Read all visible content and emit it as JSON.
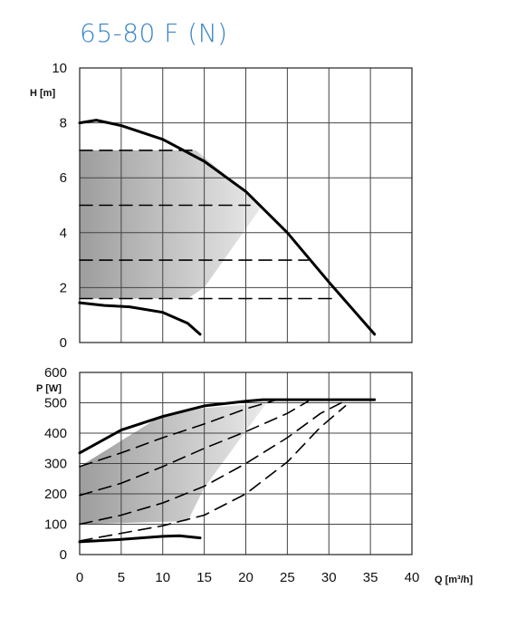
{
  "title": "65-80 F (N)",
  "colors": {
    "title": "#3a86c8",
    "curve": "#000000",
    "grid": "#333333",
    "shade": "#9a9a9a"
  },
  "chart_data": [
    {
      "type": "line",
      "ylabel": "H [m]",
      "xlim": [
        0,
        40
      ],
      "ylim": [
        0,
        10
      ],
      "x_ticks": [
        0,
        5,
        10,
        15,
        20,
        25,
        30,
        35,
        40
      ],
      "y_ticks": [
        0,
        2,
        4,
        6,
        8,
        10
      ],
      "grid": true,
      "shaded_region": [
        [
          0,
          7
        ],
        [
          14,
          7
        ],
        [
          22,
          5
        ],
        [
          15,
          2
        ],
        [
          13,
          1.6
        ],
        [
          0,
          1.6
        ]
      ],
      "series": [
        {
          "style": "solid",
          "points": [
            [
              0,
              8.0
            ],
            [
              2,
              8.1
            ],
            [
              5,
              7.9
            ],
            [
              10,
              7.4
            ],
            [
              15,
              6.6
            ],
            [
              20,
              5.5
            ],
            [
              25,
              4.0
            ],
            [
              30,
              2.2
            ],
            [
              35.5,
              0.3
            ]
          ]
        },
        {
          "style": "solid",
          "points": [
            [
              0,
              1.45
            ],
            [
              3,
              1.35
            ],
            [
              6,
              1.3
            ],
            [
              10,
              1.1
            ],
            [
              13,
              0.7
            ],
            [
              14.5,
              0.3
            ]
          ]
        },
        {
          "style": "dashed",
          "points": [
            [
              0,
              7
            ],
            [
              14,
              7
            ]
          ]
        },
        {
          "style": "dashed",
          "points": [
            [
              0,
              5
            ],
            [
              20.5,
              5
            ]
          ]
        },
        {
          "style": "dashed",
          "points": [
            [
              0,
              3
            ],
            [
              27.5,
              3
            ]
          ]
        },
        {
          "style": "dashed",
          "points": [
            [
              0,
              1.6
            ],
            [
              31,
              1.6
            ]
          ]
        }
      ]
    },
    {
      "type": "line",
      "ylabel": "P [W]",
      "xlabel": "Q [m³/h]",
      "xlim": [
        0,
        40
      ],
      "ylim": [
        0,
        600
      ],
      "x_ticks": [
        0,
        5,
        10,
        15,
        20,
        25,
        30,
        35,
        40
      ],
      "y_ticks": [
        0,
        100,
        200,
        300,
        400,
        500,
        600
      ],
      "grid": true,
      "shaded_region": [
        [
          0,
          290
        ],
        [
          10,
          460
        ],
        [
          14,
          480
        ],
        [
          22.5,
          500
        ],
        [
          15,
          220
        ],
        [
          13,
          110
        ],
        [
          0,
          100
        ]
      ],
      "series": [
        {
          "style": "solid",
          "points": [
            [
              0,
              335
            ],
            [
              5,
              410
            ],
            [
              10,
              455
            ],
            [
              15,
              490
            ],
            [
              20,
              505
            ],
            [
              22,
              510
            ],
            [
              35.5,
              510
            ]
          ]
        },
        {
          "style": "solid",
          "points": [
            [
              0,
              42
            ],
            [
              5,
              50
            ],
            [
              10,
              60
            ],
            [
              12,
              62
            ],
            [
              14.5,
              55
            ]
          ]
        },
        {
          "style": "dashed",
          "points": [
            [
              0,
              290
            ],
            [
              5,
              335
            ],
            [
              10,
              385
            ],
            [
              15,
              430
            ],
            [
              20,
              480
            ],
            [
              23.5,
              508
            ]
          ]
        },
        {
          "style": "dashed",
          "points": [
            [
              0,
              195
            ],
            [
              5,
              235
            ],
            [
              10,
              290
            ],
            [
              15,
              350
            ],
            [
              20,
              405
            ],
            [
              25,
              465
            ],
            [
              27.5,
              505
            ]
          ]
        },
        {
          "style": "dashed",
          "points": [
            [
              0,
              100
            ],
            [
              5,
              130
            ],
            [
              10,
              170
            ],
            [
              15,
              225
            ],
            [
              20,
              300
            ],
            [
              25,
              385
            ],
            [
              29,
              465
            ],
            [
              31.5,
              500
            ]
          ]
        },
        {
          "style": "dashed",
          "points": [
            [
              0,
              45
            ],
            [
              5,
              70
            ],
            [
              10,
              95
            ],
            [
              15,
              130
            ],
            [
              20,
              200
            ],
            [
              25,
              305
            ],
            [
              29,
              420
            ],
            [
              32,
              490
            ]
          ]
        }
      ]
    }
  ]
}
